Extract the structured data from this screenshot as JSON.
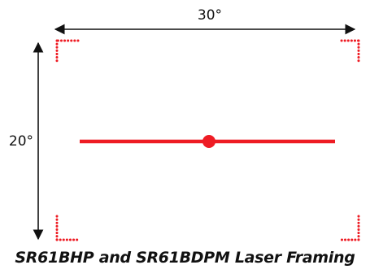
{
  "diagram": {
    "horizontal_angle": "30°",
    "vertical_angle": "20°",
    "caption": "SR61BHP and SR61BDPM Laser Framing",
    "colors": {
      "laser": "#ee1c24",
      "arrow": "#111111",
      "text": "#111111"
    }
  }
}
